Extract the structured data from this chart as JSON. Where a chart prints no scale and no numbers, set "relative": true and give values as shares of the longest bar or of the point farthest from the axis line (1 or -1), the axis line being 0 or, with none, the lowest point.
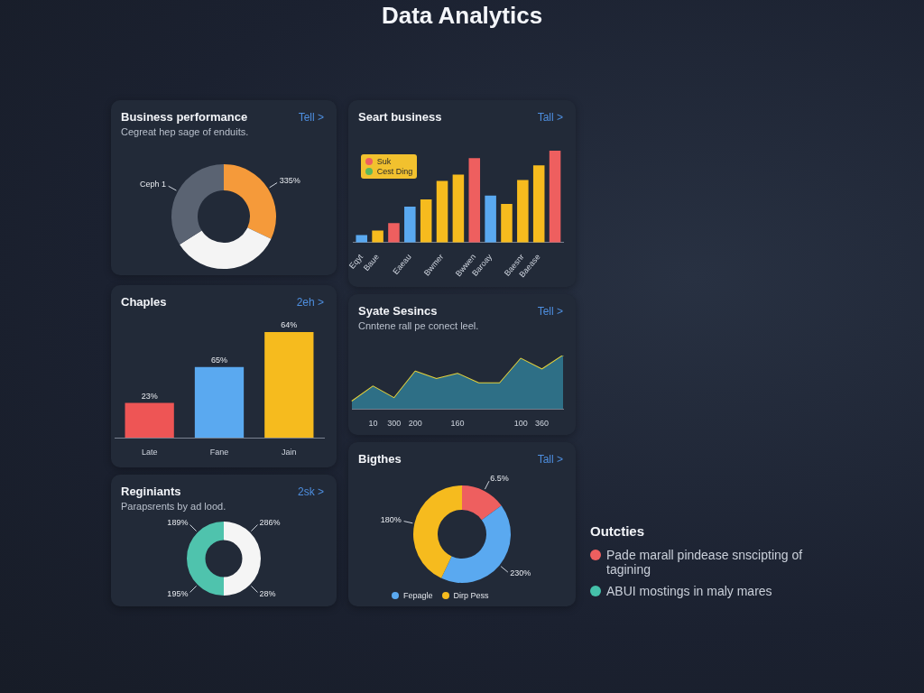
{
  "chart_data": [
    {
      "type": "other",
      "title": "Data Analytics"
    },
    {
      "type": "donut",
      "title": "Business performance",
      "subtitle": "Cegreat hep sage of enduits.",
      "annotations": [
        "Tell >",
        "335%"
      ],
      "categories": [
        null,
        null,
        "Ceph 1"
      ],
      "values": [
        32,
        34,
        34
      ],
      "colors": [
        "#f59a3a",
        "#f4f4f4",
        "#5a6372"
      ]
    },
    {
      "type": "bar",
      "title": "Seart business",
      "annotations": [
        "Tall >"
      ],
      "relative": true,
      "categories": [
        "Eqyt",
        "Baue",
        null,
        "Eaeau",
        null,
        "Bwmer",
        null,
        "Bwwen",
        "Baroay",
        null,
        "Baesnr",
        "Baease",
        null
      ],
      "series": [
        {
          "name": "Suk",
          "color": "#ee5f5f",
          "values": [
            null,
            null,
            0.21,
            null,
            null,
            null,
            null,
            0.92,
            null,
            null,
            null,
            null,
            1
          ]
        },
        {
          "name": "Cest Ding",
          "color": "#5cb85c",
          "values": [
            null,
            null,
            null,
            null,
            null,
            null,
            null,
            null,
            null,
            null,
            null,
            null,
            null
          ]
        },
        {
          "color": "#5aa9f0",
          "values": [
            0.08,
            null,
            null,
            0.39,
            null,
            null,
            null,
            null,
            0.51,
            null,
            null,
            null,
            null
          ]
        },
        {
          "color": "#f6bb1e",
          "values": [
            null,
            0.13,
            null,
            null,
            0.47,
            0.67,
            0.74,
            null,
            null,
            0.42,
            0.68,
            0.84,
            null
          ]
        }
      ],
      "legend": "top left"
    },
    {
      "type": "bar",
      "title": "Chaples",
      "annotations": [
        "2eh >",
        "23%",
        "65%",
        "64%"
      ],
      "relative": true,
      "categories": [
        "Late",
        "Fane",
        "Jain"
      ],
      "values": [
        0.33,
        0.67,
        1
      ],
      "colors": [
        "#ee5555",
        "#5aa9f0",
        "#f6bb1e"
      ]
    },
    {
      "type": "area",
      "title": "Syate Sesincs",
      "subtitle": "Cnntene rall pe conect leel.",
      "annotations": [
        "Tell >"
      ],
      "relative": true,
      "categories": [
        null,
        "10",
        "300",
        "200",
        null,
        "160",
        null,
        null,
        "100",
        "360",
        null
      ],
      "series": [
        {
          "color": "#2e6f86",
          "values": [
            0.14,
            0.42,
            0.2,
            0.7,
            0.56,
            0.66,
            0.48,
            0.48,
            0.94,
            0.74,
            1
          ]
        },
        {
          "type": "line",
          "color": "#e5d23a",
          "values": [
            0.14,
            0.42,
            0.2,
            0.7,
            0.56,
            0.66,
            0.48,
            0.48,
            0.94,
            0.74,
            1
          ]
        }
      ]
    },
    {
      "type": "donut",
      "title": "Reginiants",
      "subtitle": "Parapsrents by ad lood.",
      "annotations": [
        "2sk >",
        "286%",
        "28%",
        "195%",
        "189%"
      ],
      "categories": [
        null,
        null,
        null,
        null
      ],
      "values": [
        25,
        25,
        25,
        25
      ],
      "colors": [
        "#f5f5f5",
        "#f5f5f5",
        "#4fc3ad",
        "#4fc3ad"
      ]
    },
    {
      "type": "donut",
      "title": "Bigthes",
      "annotations": [
        "Tall >",
        "6.5%",
        "230%",
        "180%"
      ],
      "categories": [
        null,
        "Fepagle",
        "Dirp Pess"
      ],
      "values": [
        15,
        42,
        43
      ],
      "colors": [
        "#ee5f5f",
        "#5aa9f0",
        "#f6bb1e"
      ],
      "legend": "bottom left"
    },
    {
      "type": "other",
      "title": "Outcties",
      "annotations": [
        "Pade marall pindease snscipting of tagining",
        "ABUI mostings in maly mares"
      ]
    }
  ]
}
